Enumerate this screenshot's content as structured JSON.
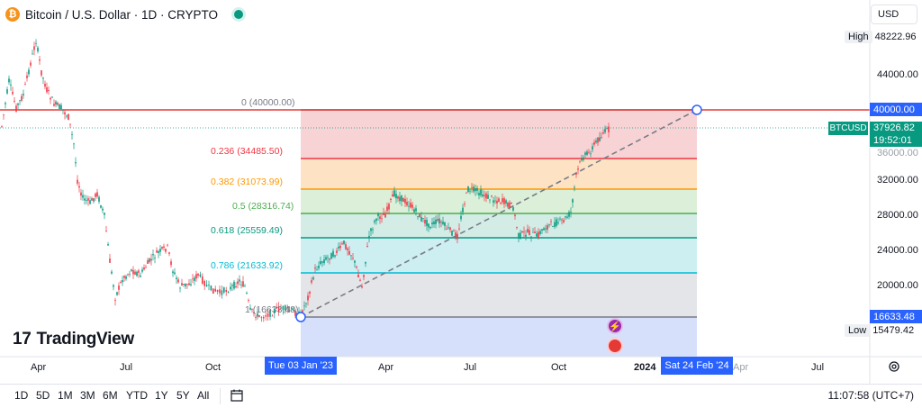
{
  "header": {
    "symbol_title": "Bitcoin / U.S. Dollar · 1D · CRYPTO",
    "coin_glyph": "₿",
    "currency": "USD"
  },
  "price_axis": {
    "ticks": [
      "44000.00",
      "32000.00",
      "28000.00",
      "24000.00",
      "20000.00"
    ],
    "high_label": "High",
    "high_value": "48222.96",
    "low_label": "Low",
    "low_value": "15479.42",
    "level_top": "40000.00",
    "level_bottom": "16633.48",
    "symbol_tag": "BTCUSD",
    "last_price": "37926.82",
    "countdown": "19:52:01",
    "partial_tick": "36000.00"
  },
  "fib_levels": [
    {
      "label": "0 (40000.00)",
      "price": 40000.0,
      "color": "#787b86"
    },
    {
      "label": "0.236 (34485.50)",
      "price": 34485.5,
      "color": "#f23645"
    },
    {
      "label": "0.382 (31073.99)",
      "price": 31073.99,
      "color": "#ff9800"
    },
    {
      "label": "0.5 (28316.74)",
      "price": 28316.74,
      "color": "#4caf50"
    },
    {
      "label": "0.618 (25559.49)",
      "price": 25559.49,
      "color": "#089981"
    },
    {
      "label": "0.786 (21633.92)",
      "price": 21633.92,
      "color": "#00bcd4"
    },
    {
      "label": "1 (16633.48)",
      "price": 16633.48,
      "color": "#787b86"
    }
  ],
  "time_axis": {
    "ticks": [
      "Apr",
      "Jul",
      "Oct",
      "Apr",
      "Jul",
      "Oct",
      "2024",
      "Apr",
      "Jul"
    ],
    "start_tag": "Tue 03 Jan '23",
    "end_tag": "Sat 24 Feb '24"
  },
  "branding": {
    "logo_mark": "17",
    "logo_text": "TradingView"
  },
  "toolbar": {
    "ranges": [
      "1D",
      "5D",
      "1M",
      "3M",
      "6M",
      "YTD",
      "1Y",
      "5Y",
      "All"
    ],
    "clock": "11:07:58 (UTC+7)"
  },
  "colors": {
    "up": "#089981",
    "down": "#f23645",
    "accent": "#2962ff",
    "horizontal_line": "#e53935"
  }
}
